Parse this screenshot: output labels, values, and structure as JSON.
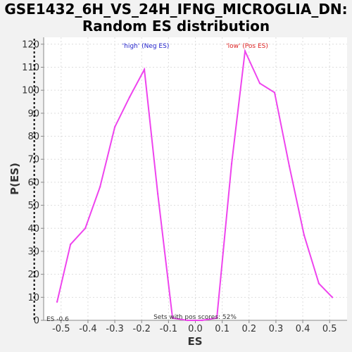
{
  "chart_data": {
    "type": "line",
    "title_line1": "GSE1432_6H_VS_24H_IFNG_MICROGLIA_DN:",
    "title_line2": "Random ES distribution",
    "xlabel": "ES",
    "ylabel": "P(ES)",
    "xlim": [
      -0.565,
      0.565
    ],
    "ylim": [
      0,
      123
    ],
    "xticks": [
      -0.5,
      -0.4,
      -0.3,
      -0.2,
      -0.1,
      0.0,
      0.1,
      0.2,
      0.3,
      0.4,
      0.5
    ],
    "xtick_labels": [
      "-0.5",
      "-0.4",
      "-0.3",
      "-0.2",
      "-0.1",
      "0.0",
      "0.1",
      "0.2",
      "0.3",
      "0.4",
      "0.5"
    ],
    "yticks": [
      0,
      10,
      20,
      30,
      40,
      50,
      60,
      70,
      80,
      90,
      100,
      110,
      120
    ],
    "ytick_labels": [
      "0",
      "10",
      "20",
      "30",
      "40",
      "50",
      "60",
      "70",
      "80",
      "90",
      "100",
      "110",
      "120"
    ],
    "grid": true,
    "line_color": "#ee44ee",
    "x": [
      -0.515,
      -0.465,
      -0.41,
      -0.355,
      -0.3,
      -0.245,
      -0.19,
      -0.14,
      -0.085,
      -0.03,
      0.025,
      0.08,
      0.135,
      0.185,
      0.24,
      0.295,
      0.35,
      0.405,
      0.46,
      0.51
    ],
    "y": [
      8,
      33,
      40,
      58,
      84,
      97,
      109,
      55,
      1,
      0,
      0,
      1,
      68,
      117,
      103,
      99,
      67,
      37,
      16,
      10
    ],
    "observed_es": -0.6,
    "observed_es_label": "ES -0.6",
    "annotations": {
      "high": "'high' (Neg ES)",
      "low": "'low' (Pos ES)",
      "high_color": "#2222cc",
      "low_color": "#dd2222",
      "pos_scores": "Sets with pos scores: 52%"
    }
  }
}
